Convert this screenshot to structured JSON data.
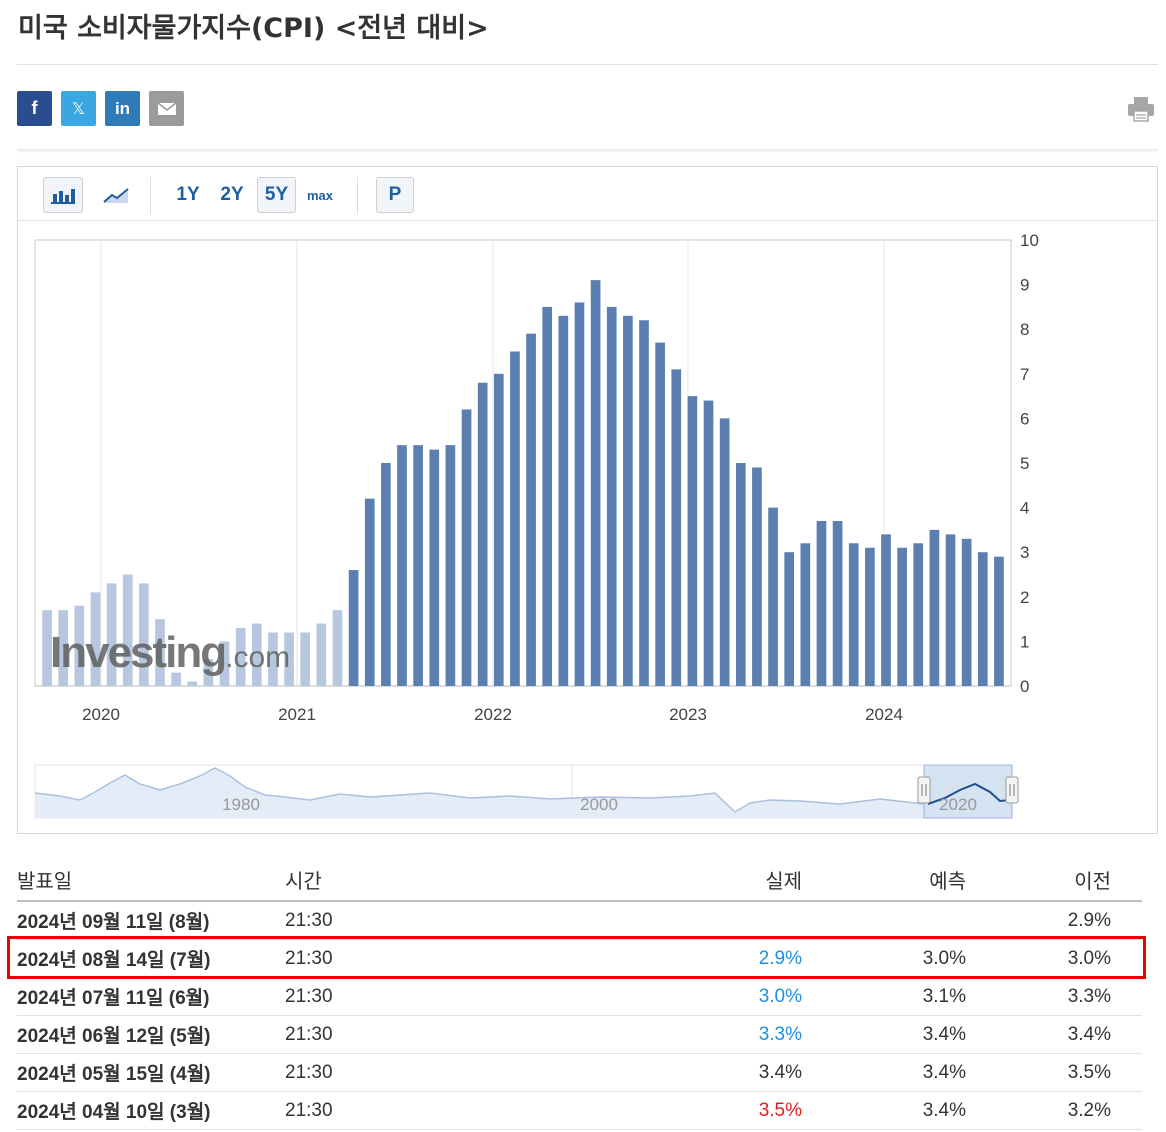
{
  "title": "미국 소비자물가지수(CPI) <전년 대비>",
  "social": {
    "facebook": "f",
    "twitter": "𝕏",
    "linkedin": "in"
  },
  "toolbar": {
    "range_1y": "1Y",
    "range_2y": "2Y",
    "range_5y": "5Y",
    "range_max": "max",
    "p": "P",
    "selected": "5Y"
  },
  "watermark": {
    "brand": "Investing",
    "suffix": ".com"
  },
  "navigator": {
    "labels": [
      "1980",
      "2000",
      "2020"
    ]
  },
  "chart_data": {
    "type": "bar",
    "ylim": [
      0,
      10
    ],
    "yticks": [
      "0",
      "1",
      "2",
      "3",
      "4",
      "5",
      "6",
      "7",
      "8",
      "9",
      "10"
    ],
    "xticks": [
      "2020",
      "2021",
      "2022",
      "2023",
      "2024"
    ],
    "bar_color": "#5b7fb0",
    "faded_color": "#b6c7df",
    "values": [
      1.7,
      1.7,
      1.8,
      2.1,
      2.3,
      2.5,
      2.3,
      1.5,
      0.3,
      0.1,
      0.6,
      1.0,
      1.3,
      1.4,
      1.2,
      1.2,
      1.2,
      1.4,
      1.7,
      2.6,
      4.2,
      5.0,
      5.4,
      5.4,
      5.3,
      5.4,
      6.2,
      6.8,
      7.0,
      7.5,
      7.9,
      8.5,
      8.3,
      8.6,
      9.1,
      8.5,
      8.3,
      8.2,
      7.7,
      7.1,
      6.5,
      6.4,
      6.0,
      5.0,
      4.9,
      4.0,
      3.0,
      3.2,
      3.7,
      3.7,
      3.2,
      3.1,
      3.4,
      3.1,
      3.2,
      3.5,
      3.4,
      3.3,
      3.0,
      2.9
    ],
    "faded_count": 19
  },
  "table": {
    "headers": {
      "date": "발표일",
      "time": "시간",
      "actual": "실제",
      "forecast": "예측",
      "previous": "이전"
    },
    "rows": [
      {
        "date": "2024년 09월 11일 (8월)",
        "time": "21:30",
        "actual": "",
        "actual_color": "#333333",
        "forecast": "",
        "previous": "2.9%"
      },
      {
        "date": "2024년 08월 14일 (7월)",
        "time": "21:30",
        "actual": "2.9%",
        "actual_color": "#1e90e0",
        "forecast": "3.0%",
        "previous": "3.0%"
      },
      {
        "date": "2024년 07월 11일 (6월)",
        "time": "21:30",
        "actual": "3.0%",
        "actual_color": "#1e90e0",
        "forecast": "3.1%",
        "previous": "3.3%"
      },
      {
        "date": "2024년 06월 12일 (5월)",
        "time": "21:30",
        "actual": "3.3%",
        "actual_color": "#1e90e0",
        "forecast": "3.4%",
        "previous": "3.4%"
      },
      {
        "date": "2024년 05월 15일 (4월)",
        "time": "21:30",
        "actual": "3.4%",
        "actual_color": "#333333",
        "forecast": "3.4%",
        "previous": "3.5%"
      },
      {
        "date": "2024년 04월 10일 (3월)",
        "time": "21:30",
        "actual": "3.5%",
        "actual_color": "#e02020",
        "forecast": "3.4%",
        "previous": "3.2%"
      }
    ]
  }
}
